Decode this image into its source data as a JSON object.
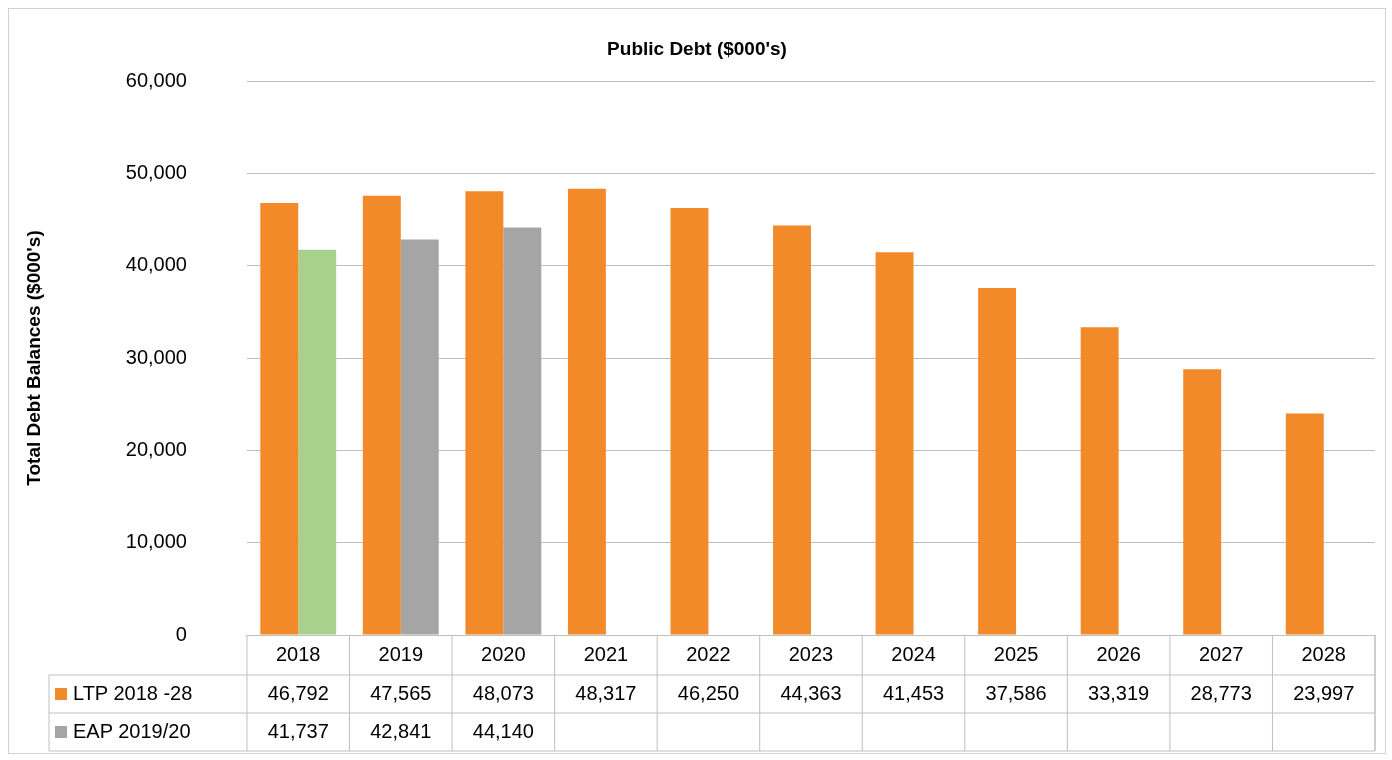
{
  "chart_data": {
    "type": "bar",
    "title": "Public Debt ($000's)",
    "ylabel": "Total Debt Balances ($000's)",
    "categories": [
      "2018",
      "2019",
      "2020",
      "2021",
      "2022",
      "2023",
      "2024",
      "2025",
      "2026",
      "2027",
      "2028"
    ],
    "series": [
      {
        "name": "LTP 2018 -28",
        "color": "#f28a2a",
        "values": [
          46792,
          47565,
          48073,
          48317,
          46250,
          44363,
          41453,
          37586,
          33319,
          28773,
          23997
        ],
        "value_labels": [
          "46,792",
          "47,565",
          "48,073",
          "48,317",
          "46,250",
          "44,363",
          "41,453",
          "37,586",
          "33,319",
          "28,773",
          "23,997"
        ]
      },
      {
        "name": "EAP 2019/20",
        "color": "#a5a5a5",
        "colors": [
          "#a9d18e",
          "#a5a5a5",
          "#a5a5a5",
          null,
          null,
          null,
          null,
          null,
          null,
          null,
          null
        ],
        "values": [
          41737,
          42841,
          44140,
          null,
          null,
          null,
          null,
          null,
          null,
          null,
          null
        ],
        "value_labels": [
          "41,737",
          "42,841",
          "44,140",
          null,
          null,
          null,
          null,
          null,
          null,
          null,
          null
        ]
      }
    ],
    "ylim": [
      0,
      60000
    ],
    "yticks": [
      0,
      {
        "value": 10000,
        "label": "10,000"
      },
      {
        "value": 20000,
        "label": "20,000"
      },
      {
        "value": 30000,
        "label": "30,000"
      },
      {
        "value": 40000,
        "label": "40,000"
      },
      {
        "value": 50000,
        "label": "50,000"
      },
      {
        "value": 60000,
        "label": "60,000"
      }
    ],
    "grid": "y",
    "legend": "bottom left"
  }
}
